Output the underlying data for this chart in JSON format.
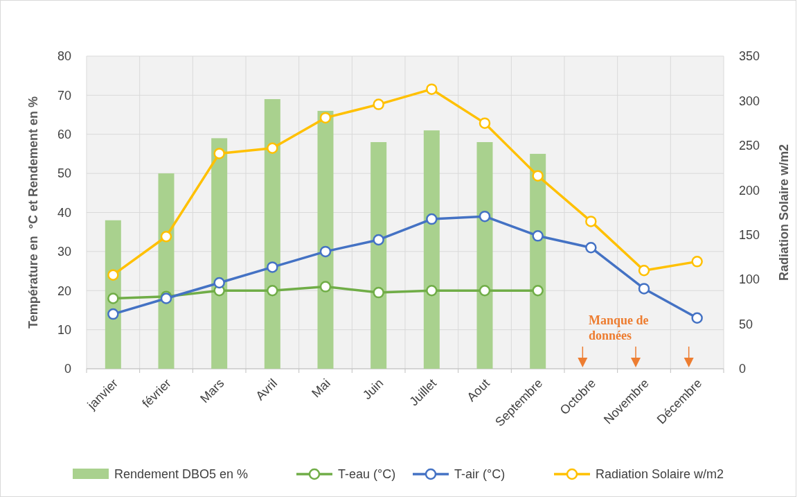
{
  "chart_data": {
    "type": "bar",
    "categories": [
      "janvier",
      "février",
      "Mars",
      "Avril",
      "Mai",
      "Juin",
      "Juillet",
      "Aout",
      "Septembre",
      "Octobre",
      "Novembre",
      "Décembre"
    ],
    "series": [
      {
        "name": "Rendement DBO5 en %",
        "color": "#a9d18e",
        "values": [
          38,
          50,
          59,
          69,
          66,
          58,
          61,
          58,
          55,
          null,
          null,
          null
        ]
      },
      {
        "name": "T-eau (°C)",
        "type": "line",
        "color": "#70ad47",
        "values": [
          18,
          18.5,
          20,
          20,
          21,
          19.5,
          20,
          20,
          20,
          null,
          null,
          null
        ]
      },
      {
        "name": "T-air (°C)",
        "type": "line",
        "color": "#4472c4",
        "values": [
          14,
          18,
          22,
          26,
          30,
          33,
          38.3,
          39,
          34,
          31,
          20.5,
          13
        ]
      },
      {
        "name": "Radiation Solaire w/m2",
        "type": "line",
        "axis": "y2",
        "color": "#ffc000",
        "values": [
          105,
          148,
          241,
          247,
          281,
          296,
          313,
          275,
          216,
          165,
          110,
          120
        ]
      }
    ],
    "ylabel": "Température en  °C et Rendement en %",
    "y2label": "Radiation Solaire w/m2",
    "ylim": [
      0,
      80
    ],
    "yticks": [
      0,
      10,
      20,
      30,
      40,
      50,
      60,
      70,
      80
    ],
    "y2lim": [
      0,
      350
    ],
    "y2ticks": [
      0,
      50,
      100,
      150,
      200,
      250,
      300,
      350
    ],
    "grid": true,
    "legend": "bottom",
    "marker": "circle",
    "annotations": [
      "Manque de données"
    ]
  }
}
